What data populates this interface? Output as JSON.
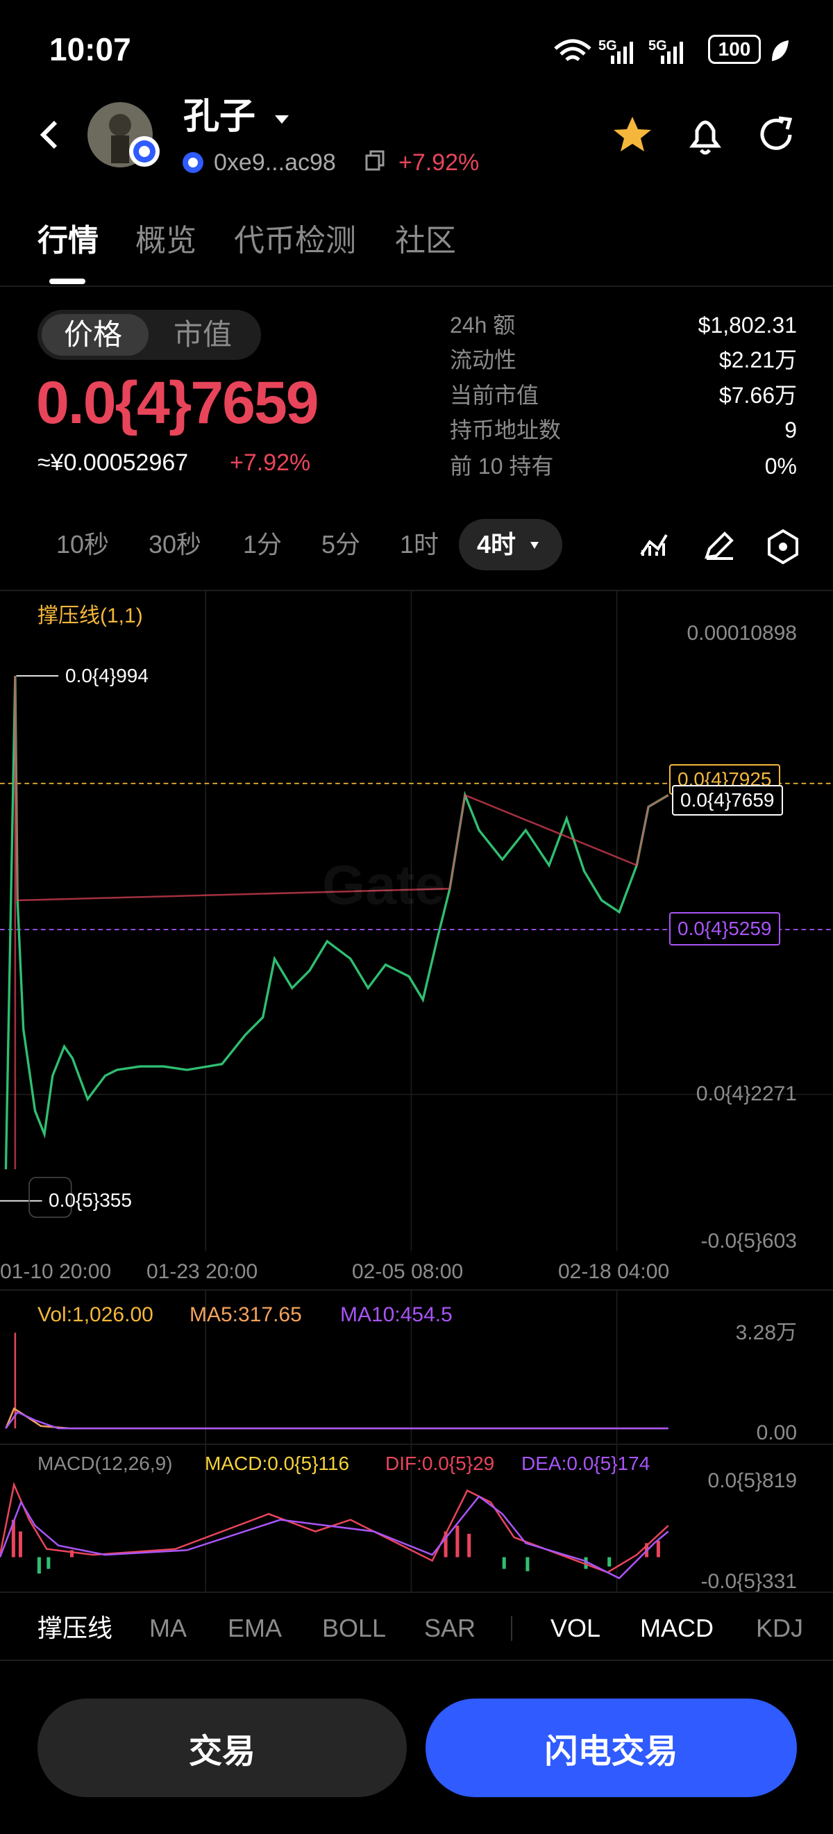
{
  "status_bar": {
    "time": "10:07",
    "network_1": "5G",
    "network_2": "5G",
    "battery": "100"
  },
  "header": {
    "name": "孔子",
    "address": "0xe9...ac98",
    "change": "+7.92%"
  },
  "tabs": [
    "行情",
    "概览",
    "代币检测",
    "社区"
  ],
  "toggle": [
    "价格",
    "市值"
  ],
  "price": {
    "value": "0.0{4}7659",
    "cny": "≈¥0.00052967",
    "change": "+7.92%"
  },
  "stats": [
    {
      "label": "24h  额",
      "value": "$1,802.31"
    },
    {
      "label": "流动性",
      "value": "$2.21万"
    },
    {
      "label": "当前市值",
      "value": "$7.66万"
    },
    {
      "label": "持币地址数",
      "value": "9"
    },
    {
      "label": "前 10 持有",
      "value": "0%"
    }
  ],
  "intervals": [
    "10秒",
    "30秒",
    "1分",
    "5分",
    "1时",
    "4时"
  ],
  "chart": {
    "indicator": "撑压线(1,1)",
    "y_labels": [
      "0.00010898",
      "0.0{4}2271",
      "-0.0{5}603"
    ],
    "high_label": "0.0{4}994",
    "low_label": "0.0{5}355",
    "resistance": "0.0{4}7925",
    "current": "0.0{4}7659",
    "support": "0.0{4}5259",
    "watermark": "Gate",
    "x_labels": [
      "01-10 20:00",
      "01-23 20:00",
      "02-05 08:00",
      "02-18 04:00"
    ]
  },
  "volume": {
    "vol": "Vol:1,026.00",
    "ma5": "MA5:317.65",
    "ma10": "MA10:454.5",
    "y_labels": [
      "3.28万",
      "0.00"
    ]
  },
  "macd": {
    "title": "MACD(12,26,9)",
    "macd": "MACD:0.0{5}116",
    "dif": "DIF:0.0{5}29",
    "dea": "DEA:0.0{5}174",
    "y_labels": [
      "0.0{5}819",
      "-0.0{5}331"
    ]
  },
  "indicators": [
    "撑压线",
    "MA",
    "EMA",
    "BOLL",
    "SAR",
    "VOL",
    "MACD",
    "KDJ"
  ],
  "buttons": {
    "trade": "交易",
    "flash_trade": "闪电交易"
  }
}
